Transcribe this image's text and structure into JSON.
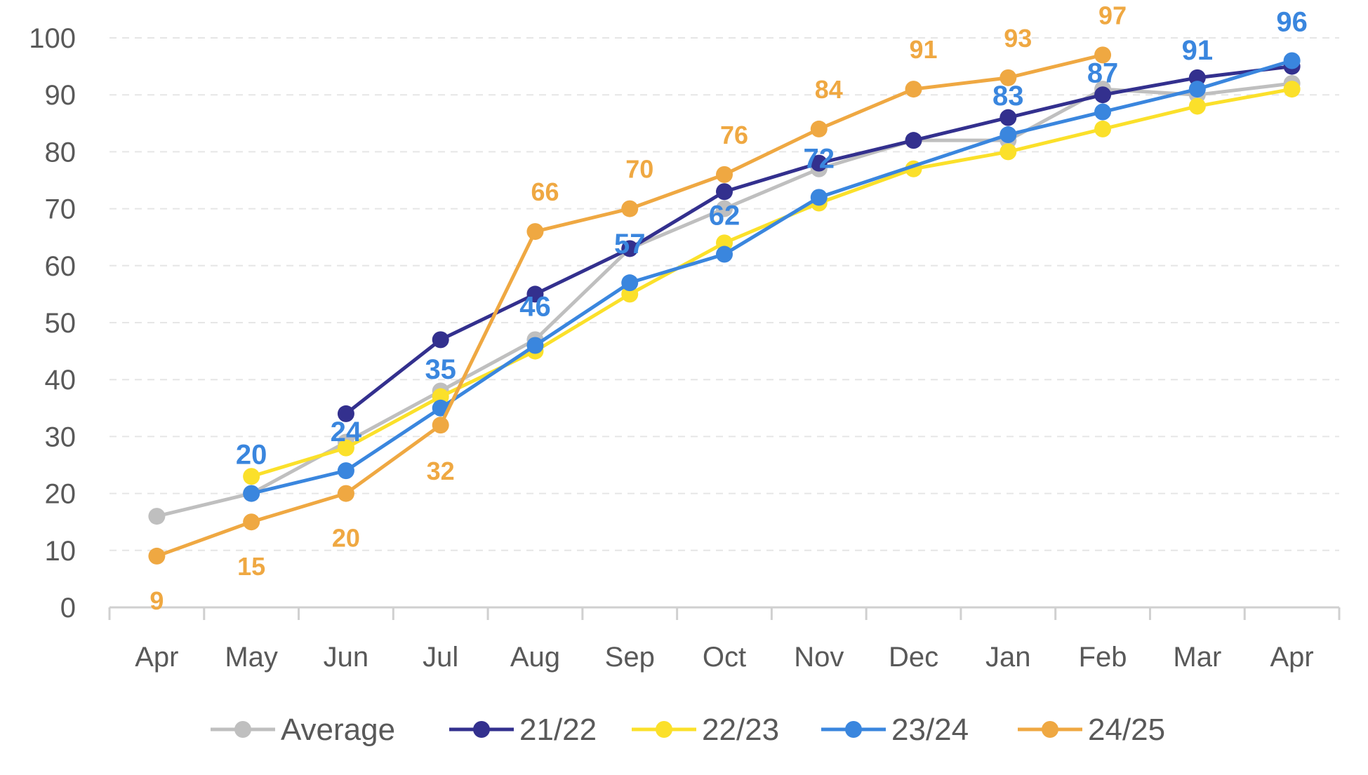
{
  "chart_data": {
    "type": "line",
    "title": "",
    "xlabel": "",
    "ylabel": "",
    "categories": [
      "Apr",
      "May",
      "Jun",
      "Jul",
      "Aug",
      "Sep",
      "Oct",
      "Nov",
      "Dec",
      "Jan",
      "Feb",
      "Mar",
      "Apr"
    ],
    "ylim": [
      0,
      100
    ],
    "yticks": [
      "0",
      "10",
      "20",
      "30",
      "40",
      "50",
      "60",
      "70",
      "80",
      "90",
      "100"
    ],
    "grid": true,
    "legend_position": "bottom",
    "series": [
      {
        "name": "Average",
        "color": "#bfbfbf",
        "values": [
          16,
          20,
          29,
          38,
          47,
          63,
          70,
          77,
          82,
          82,
          91,
          90,
          92
        ]
      },
      {
        "name": "21/22",
        "color": "#33308e",
        "values": [
          null,
          null,
          34,
          47,
          55,
          63,
          73,
          78,
          82,
          86,
          90,
          93,
          95
        ]
      },
      {
        "name": "22/23",
        "color": "#fbe02a",
        "values": [
          null,
          23,
          28,
          37,
          45,
          55,
          64,
          71,
          77,
          80,
          84,
          88,
          91
        ]
      },
      {
        "name": "23/24",
        "color": "#3a86de",
        "values": [
          null,
          20,
          24,
          35,
          46,
          57,
          62,
          72,
          null,
          83,
          87,
          91,
          96
        ]
      },
      {
        "name": "24/25",
        "color": "#efa842",
        "values": [
          9,
          15,
          20,
          32,
          66,
          70,
          76,
          84,
          91,
          93,
          97,
          null,
          null
        ]
      }
    ],
    "data_labels": [
      {
        "series": "23/24",
        "color": "#3a86de",
        "labels": [
          "",
          "20",
          "24",
          "35",
          "46",
          "57",
          "62",
          "72",
          "",
          "83",
          "87",
          "91",
          "96"
        ]
      },
      {
        "series": "24/25",
        "color": "#efa842",
        "labels": [
          "9",
          "15",
          "20",
          "32",
          "66",
          "70",
          "76",
          "84",
          "91",
          "93",
          "97",
          "",
          ""
        ]
      }
    ]
  }
}
